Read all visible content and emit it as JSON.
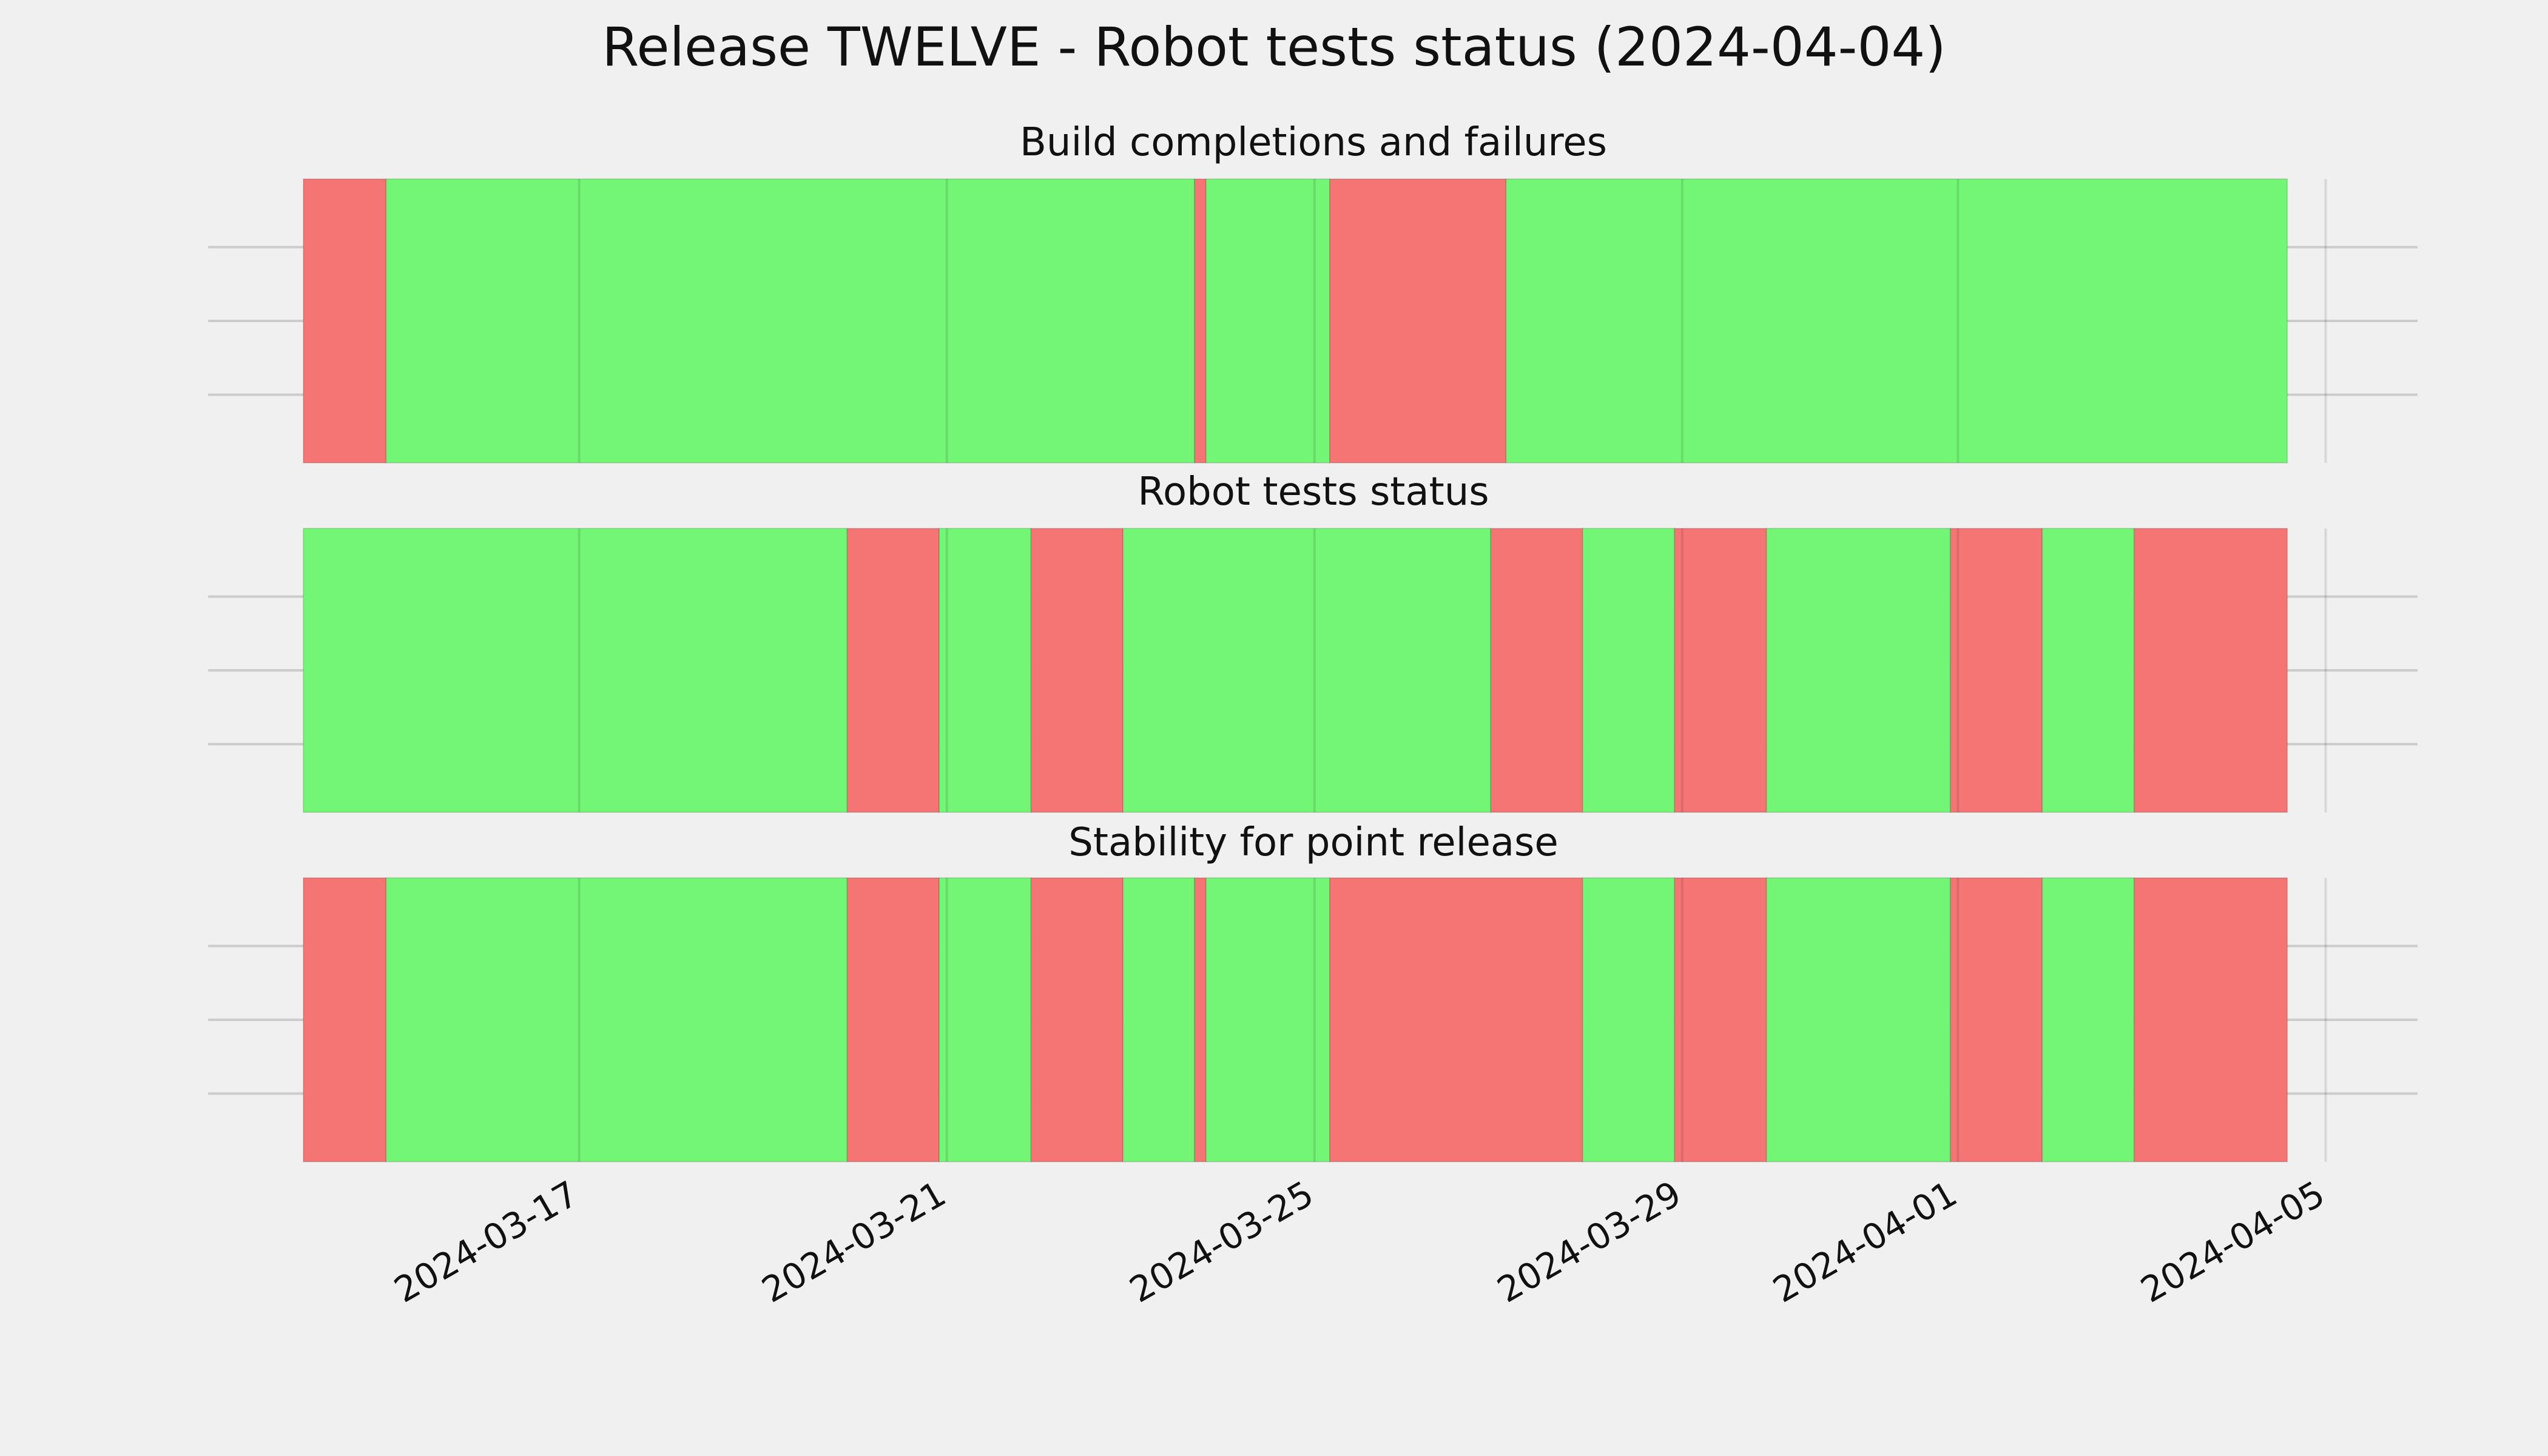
{
  "chart_data": {
    "type": "timeline",
    "title": "Release TWELVE - Robot tests status (2024-04-04)",
    "x_axis": {
      "range": [
        "2024-03-14",
        "2024-04-05T08:00"
      ],
      "ticks": [
        "2024-03-17",
        "2024-03-21",
        "2024-03-25",
        "2024-03-29",
        "2024-04-01",
        "2024-04-05"
      ]
    },
    "colors": {
      "pass": "#73f575",
      "fail": "#f57575",
      "grid": "#cccccc",
      "background": "#f0f0f0"
    },
    "panels": [
      {
        "title": "Build completions and failures",
        "segments": [
          {
            "start": "2024-03-14T00:00",
            "end": "2024-03-14T21:36",
            "status": "fail"
          },
          {
            "start": "2024-03-14T21:36",
            "end": "2024-03-23T16:40",
            "status": "pass"
          },
          {
            "start": "2024-03-23T16:40",
            "end": "2024-03-23T19:40",
            "status": "fail"
          },
          {
            "start": "2024-03-23T19:40",
            "end": "2024-03-25T04:00",
            "status": "pass"
          },
          {
            "start": "2024-03-25T04:00",
            "end": "2024-03-27T02:00",
            "status": "fail"
          },
          {
            "start": "2024-03-27T02:00",
            "end": "2024-04-04T14:00",
            "status": "pass"
          }
        ]
      },
      {
        "title": "Robot tests status",
        "segments": [
          {
            "start": "2024-03-14T00:00",
            "end": "2024-03-19T22:00",
            "status": "pass"
          },
          {
            "start": "2024-03-19T22:00",
            "end": "2024-03-20T22:00",
            "status": "fail"
          },
          {
            "start": "2024-03-20T22:00",
            "end": "2024-03-21T22:00",
            "status": "pass"
          },
          {
            "start": "2024-03-21T22:00",
            "end": "2024-03-22T22:00",
            "status": "fail"
          },
          {
            "start": "2024-03-22T22:00",
            "end": "2024-03-26T22:00",
            "status": "pass"
          },
          {
            "start": "2024-03-26T22:00",
            "end": "2024-03-27T22:00",
            "status": "fail"
          },
          {
            "start": "2024-03-27T22:00",
            "end": "2024-03-28T22:00",
            "status": "pass"
          },
          {
            "start": "2024-03-28T22:00",
            "end": "2024-03-29T22:00",
            "status": "fail"
          },
          {
            "start": "2024-03-29T22:00",
            "end": "2024-03-31T22:00",
            "status": "pass"
          },
          {
            "start": "2024-03-31T22:00",
            "end": "2024-04-01T22:00",
            "status": "fail"
          },
          {
            "start": "2024-04-01T22:00",
            "end": "2024-04-02T22:00",
            "status": "pass"
          },
          {
            "start": "2024-04-02T22:00",
            "end": "2024-04-04T14:00",
            "status": "fail"
          }
        ]
      },
      {
        "title": "Stability for point release",
        "segments": [
          {
            "start": "2024-03-14T00:00",
            "end": "2024-03-14T21:36",
            "status": "fail"
          },
          {
            "start": "2024-03-14T21:36",
            "end": "2024-03-19T22:00",
            "status": "pass"
          },
          {
            "start": "2024-03-19T22:00",
            "end": "2024-03-20T22:00",
            "status": "fail"
          },
          {
            "start": "2024-03-20T22:00",
            "end": "2024-03-21T22:00",
            "status": "pass"
          },
          {
            "start": "2024-03-21T22:00",
            "end": "2024-03-22T22:00",
            "status": "fail"
          },
          {
            "start": "2024-03-22T22:00",
            "end": "2024-03-23T16:40",
            "status": "pass"
          },
          {
            "start": "2024-03-23T16:40",
            "end": "2024-03-23T19:40",
            "status": "fail"
          },
          {
            "start": "2024-03-23T19:40",
            "end": "2024-03-25T04:00",
            "status": "pass"
          },
          {
            "start": "2024-03-25T04:00",
            "end": "2024-03-27T22:00",
            "status": "fail"
          },
          {
            "start": "2024-03-27T22:00",
            "end": "2024-03-28T22:00",
            "status": "pass"
          },
          {
            "start": "2024-03-28T22:00",
            "end": "2024-03-29T22:00",
            "status": "fail"
          },
          {
            "start": "2024-03-29T22:00",
            "end": "2024-03-31T22:00",
            "status": "pass"
          },
          {
            "start": "2024-03-31T22:00",
            "end": "2024-04-01T22:00",
            "status": "fail"
          },
          {
            "start": "2024-04-01T22:00",
            "end": "2024-04-02T22:00",
            "status": "pass"
          },
          {
            "start": "2024-04-02T22:00",
            "end": "2024-04-04T14:00",
            "status": "fail"
          }
        ]
      }
    ]
  }
}
